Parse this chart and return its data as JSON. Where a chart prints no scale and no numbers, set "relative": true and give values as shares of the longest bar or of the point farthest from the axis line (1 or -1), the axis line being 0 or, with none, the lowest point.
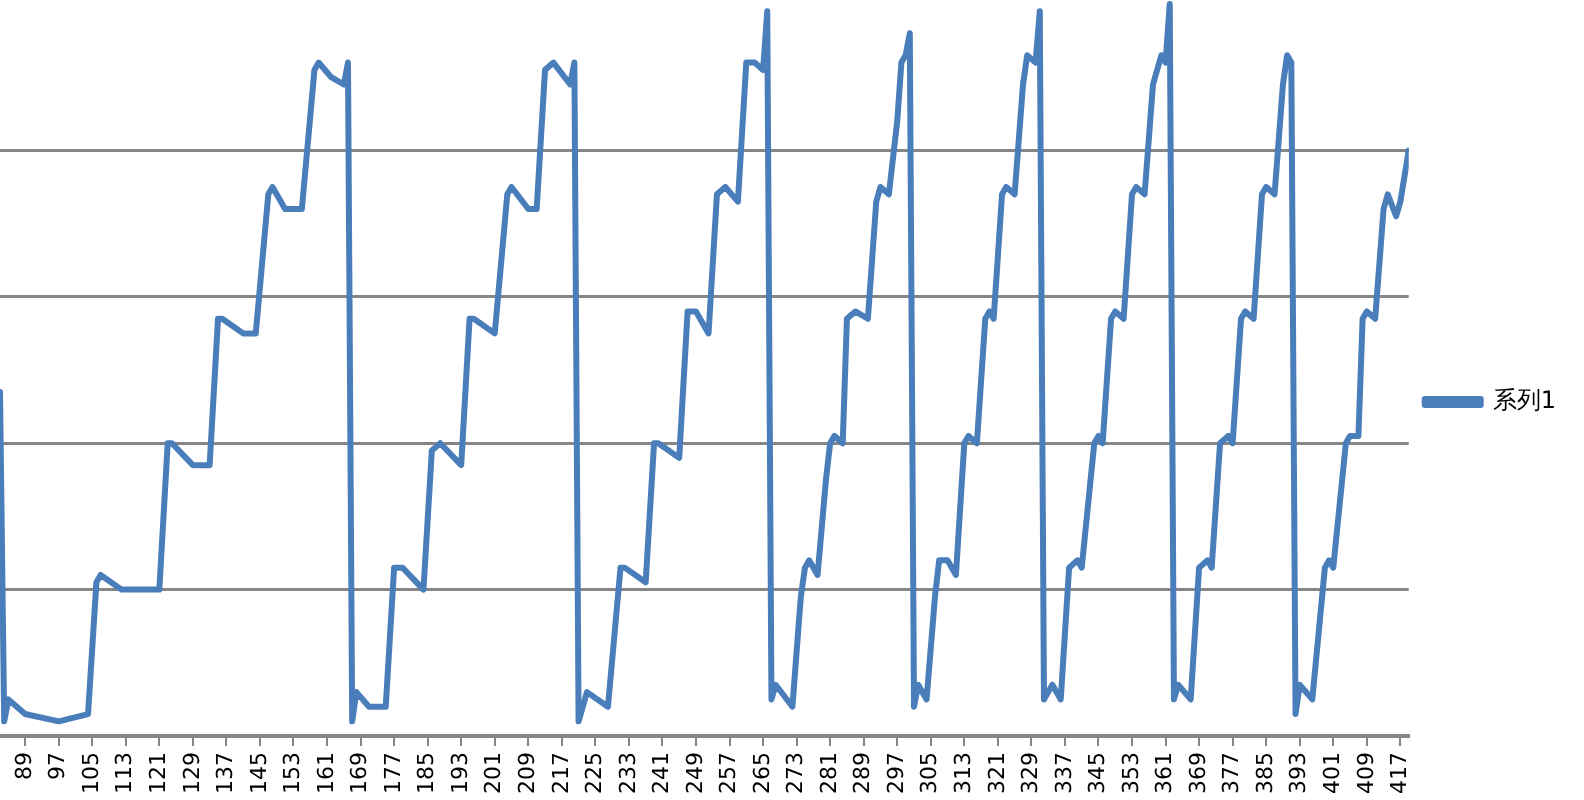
{
  "chart_data": {
    "type": "line",
    "relative": true,
    "grid": "y",
    "legend": "right",
    "marker": "none",
    "line_style": "solid",
    "xlim": [
      83,
      419
    ],
    "xticks": [
      89,
      97,
      105,
      113,
      121,
      129,
      137,
      145,
      153,
      161,
      169,
      177,
      185,
      193,
      201,
      209,
      217,
      225,
      233,
      241,
      249,
      257,
      265,
      273,
      281,
      289,
      297,
      305,
      313,
      321,
      329,
      337,
      345,
      353,
      361,
      369,
      377,
      385,
      393,
      401,
      409,
      417
    ],
    "series": [
      {
        "name": "系列1",
        "color": "#4a7ebb",
        "x": [
          83,
          84,
          85,
          89,
          97,
          104,
          106,
          107,
          112,
          121,
          123,
          124,
          129,
          133,
          135,
          136,
          141,
          144,
          147,
          148,
          151,
          155,
          158,
          159,
          162,
          165,
          166,
          167,
          168,
          171,
          175,
          177,
          179,
          184,
          186,
          188,
          193,
          195,
          196,
          201,
          204,
          205,
          209,
          211,
          213,
          215,
          219,
          220,
          221,
          223,
          228,
          231,
          232,
          237,
          239,
          240,
          245,
          247,
          249,
          252,
          254,
          256,
          259,
          261,
          263,
          265,
          266,
          267,
          268,
          272,
          274,
          275,
          276,
          278,
          280,
          281,
          282,
          284,
          285,
          287,
          290,
          292,
          293,
          295,
          297,
          298,
          299,
          300,
          301,
          302,
          304,
          306,
          307,
          309,
          311,
          313,
          314,
          316,
          318,
          319,
          320,
          322,
          323,
          325,
          327,
          328,
          330,
          331,
          332,
          334,
          336,
          338,
          340,
          341,
          344,
          345,
          346,
          348,
          349,
          351,
          353,
          354,
          356,
          358,
          360,
          361,
          362,
          363,
          364,
          367,
          369,
          371,
          372,
          374,
          376,
          377,
          379,
          380,
          382,
          384,
          385,
          387,
          389,
          390,
          391,
          392,
          393,
          396,
          399,
          400,
          401,
          404,
          405,
          407,
          408,
          409,
          411,
          413,
          414,
          416,
          417,
          419
        ],
        "values": [
          0.47,
          0.02,
          0.05,
          0.03,
          0.02,
          0.03,
          0.21,
          0.22,
          0.2,
          0.2,
          0.4,
          0.4,
          0.37,
          0.37,
          0.57,
          0.57,
          0.55,
          0.55,
          0.74,
          0.75,
          0.72,
          0.72,
          0.91,
          0.92,
          0.9,
          0.89,
          0.92,
          0.02,
          0.06,
          0.04,
          0.04,
          0.23,
          0.23,
          0.2,
          0.39,
          0.4,
          0.37,
          0.57,
          0.57,
          0.55,
          0.74,
          0.75,
          0.72,
          0.72,
          0.91,
          0.92,
          0.89,
          0.92,
          0.02,
          0.06,
          0.04,
          0.23,
          0.23,
          0.21,
          0.4,
          0.4,
          0.38,
          0.58,
          0.58,
          0.55,
          0.74,
          0.75,
          0.73,
          0.92,
          0.92,
          0.91,
          0.99,
          0.05,
          0.07,
          0.04,
          0.19,
          0.23,
          0.24,
          0.22,
          0.35,
          0.4,
          0.41,
          0.4,
          0.57,
          0.58,
          0.57,
          0.73,
          0.75,
          0.74,
          0.84,
          0.92,
          0.93,
          0.96,
          0.04,
          0.07,
          0.05,
          0.19,
          0.24,
          0.24,
          0.22,
          0.4,
          0.41,
          0.4,
          0.57,
          0.58,
          0.57,
          0.74,
          0.75,
          0.74,
          0.89,
          0.93,
          0.92,
          0.99,
          0.05,
          0.07,
          0.05,
          0.23,
          0.24,
          0.23,
          0.4,
          0.41,
          0.4,
          0.57,
          0.58,
          0.57,
          0.74,
          0.75,
          0.74,
          0.89,
          0.93,
          0.92,
          1,
          0.05,
          0.07,
          0.05,
          0.23,
          0.24,
          0.23,
          0.4,
          0.41,
          0.4,
          0.57,
          0.58,
          0.57,
          0.74,
          0.75,
          0.74,
          0.89,
          0.93,
          0.92,
          0.03,
          0.07,
          0.05,
          0.23,
          0.24,
          0.23,
          0.4,
          0.41,
          0.41,
          0.57,
          0.58,
          0.57,
          0.72,
          0.74,
          0.71,
          0.73,
          0.8
        ]
      }
    ]
  }
}
